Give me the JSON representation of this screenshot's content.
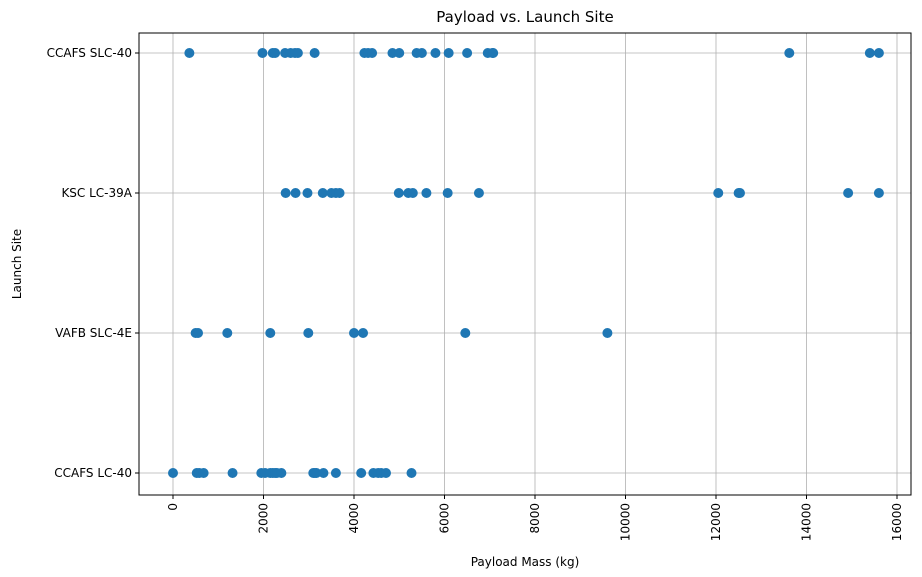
{
  "chart_data": {
    "type": "scatter",
    "title": "Payload vs. Launch Site",
    "xlabel": "Payload Mass (kg)",
    "ylabel": "Launch Site",
    "xlim": [
      -800,
      16400
    ],
    "x_ticks": [
      0,
      2000,
      4000,
      6000,
      8000,
      10000,
      12000,
      14000,
      16000
    ],
    "categories": [
      "CCAFS LC-40",
      "VAFB SLC-4E",
      "KSC LC-39A",
      "CCAFS SLC-40"
    ],
    "grid": true,
    "marker_color": "#1f77b4",
    "points": [
      {
        "x": 0,
        "y": "CCAFS LC-40"
      },
      {
        "x": 525,
        "y": "CCAFS LC-40"
      },
      {
        "x": 580,
        "y": "CCAFS LC-40"
      },
      {
        "x": 677,
        "y": "CCAFS LC-40"
      },
      {
        "x": 1316,
        "y": "CCAFS LC-40"
      },
      {
        "x": 1952,
        "y": "CCAFS LC-40"
      },
      {
        "x": 2034,
        "y": "CCAFS LC-40"
      },
      {
        "x": 2150,
        "y": "CCAFS LC-40"
      },
      {
        "x": 2205,
        "y": "CCAFS LC-40"
      },
      {
        "x": 2257,
        "y": "CCAFS LC-40"
      },
      {
        "x": 2296,
        "y": "CCAFS LC-40"
      },
      {
        "x": 2395,
        "y": "CCAFS LC-40"
      },
      {
        "x": 3100,
        "y": "CCAFS LC-40"
      },
      {
        "x": 3136,
        "y": "CCAFS LC-40"
      },
      {
        "x": 3170,
        "y": "CCAFS LC-40"
      },
      {
        "x": 3325,
        "y": "CCAFS LC-40"
      },
      {
        "x": 3600,
        "y": "CCAFS LC-40"
      },
      {
        "x": 4159,
        "y": "CCAFS LC-40"
      },
      {
        "x": 4428,
        "y": "CCAFS LC-40"
      },
      {
        "x": 4535,
        "y": "CCAFS LC-40"
      },
      {
        "x": 4600,
        "y": "CCAFS LC-40"
      },
      {
        "x": 4707,
        "y": "CCAFS LC-40"
      },
      {
        "x": 5271,
        "y": "CCAFS LC-40"
      },
      {
        "x": 500,
        "y": "VAFB SLC-4E"
      },
      {
        "x": 553,
        "y": "VAFB SLC-4E"
      },
      {
        "x": 1200,
        "y": "VAFB SLC-4E"
      },
      {
        "x": 2150,
        "y": "VAFB SLC-4E"
      },
      {
        "x": 2990,
        "y": "VAFB SLC-4E"
      },
      {
        "x": 4000,
        "y": "VAFB SLC-4E"
      },
      {
        "x": 4200,
        "y": "VAFB SLC-4E"
      },
      {
        "x": 6460,
        "y": "VAFB SLC-4E"
      },
      {
        "x": 9600,
        "y": "VAFB SLC-4E"
      },
      {
        "x": 2490,
        "y": "KSC LC-39A"
      },
      {
        "x": 2708,
        "y": "KSC LC-39A"
      },
      {
        "x": 2972,
        "y": "KSC LC-39A"
      },
      {
        "x": 3310,
        "y": "KSC LC-39A"
      },
      {
        "x": 3500,
        "y": "KSC LC-39A"
      },
      {
        "x": 3600,
        "y": "KSC LC-39A"
      },
      {
        "x": 3681,
        "y": "KSC LC-39A"
      },
      {
        "x": 4990,
        "y": "KSC LC-39A"
      },
      {
        "x": 5200,
        "y": "KSC LC-39A"
      },
      {
        "x": 5300,
        "y": "KSC LC-39A"
      },
      {
        "x": 5600,
        "y": "KSC LC-39A"
      },
      {
        "x": 6070,
        "y": "KSC LC-39A"
      },
      {
        "x": 6761,
        "y": "KSC LC-39A"
      },
      {
        "x": 12050,
        "y": "KSC LC-39A"
      },
      {
        "x": 12500,
        "y": "KSC LC-39A"
      },
      {
        "x": 12530,
        "y": "KSC LC-39A"
      },
      {
        "x": 14920,
        "y": "KSC LC-39A"
      },
      {
        "x": 15600,
        "y": "KSC LC-39A"
      },
      {
        "x": 362,
        "y": "CCAFS SLC-40"
      },
      {
        "x": 1977,
        "y": "CCAFS SLC-40"
      },
      {
        "x": 2205,
        "y": "CCAFS SLC-40"
      },
      {
        "x": 2257,
        "y": "CCAFS SLC-40"
      },
      {
        "x": 2477,
        "y": "CCAFS SLC-40"
      },
      {
        "x": 2600,
        "y": "CCAFS SLC-40"
      },
      {
        "x": 2697,
        "y": "CCAFS SLC-40"
      },
      {
        "x": 2760,
        "y": "CCAFS SLC-40"
      },
      {
        "x": 3130,
        "y": "CCAFS SLC-40"
      },
      {
        "x": 4230,
        "y": "CCAFS SLC-40"
      },
      {
        "x": 4311,
        "y": "CCAFS SLC-40"
      },
      {
        "x": 4400,
        "y": "CCAFS SLC-40"
      },
      {
        "x": 4850,
        "y": "CCAFS SLC-40"
      },
      {
        "x": 5000,
        "y": "CCAFS SLC-40"
      },
      {
        "x": 5384,
        "y": "CCAFS SLC-40"
      },
      {
        "x": 5500,
        "y": "CCAFS SLC-40"
      },
      {
        "x": 5800,
        "y": "CCAFS SLC-40"
      },
      {
        "x": 6092,
        "y": "CCAFS SLC-40"
      },
      {
        "x": 6500,
        "y": "CCAFS SLC-40"
      },
      {
        "x": 6956,
        "y": "CCAFS SLC-40"
      },
      {
        "x": 7060,
        "y": "CCAFS SLC-40"
      },
      {
        "x": 7076,
        "y": "CCAFS SLC-40"
      },
      {
        "x": 13620,
        "y": "CCAFS SLC-40"
      },
      {
        "x": 15400,
        "y": "CCAFS SLC-40"
      },
      {
        "x": 15600,
        "y": "CCAFS SLC-40"
      }
    ]
  }
}
